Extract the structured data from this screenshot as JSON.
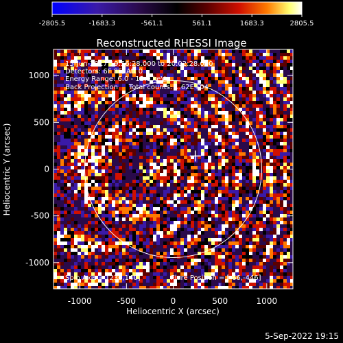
{
  "colorbar": {
    "tick_labels": [
      "-2805.5",
      "-1683.3",
      "-561.1",
      "561.1",
      "1683.3",
      "2805.5"
    ],
    "min": -2805.5,
    "max": 2805.5,
    "colormap": [
      "#0000ff",
      "#3a1aa8",
      "#2a0a4a",
      "#000000",
      "#5a0000",
      "#d01000",
      "#ff7a00",
      "#ffff70",
      "#ffffff"
    ]
  },
  "title": "Reconstructed RHESSI Image",
  "info": {
    "line1": "15-Jun-2017 19:56:28.000 to 20:02:28.000",
    "line2": "Detectors: 6F 8F, Att 0",
    "line3": "Energy Range: 6.0 - 12.0 keV",
    "line4": "Back Projection     Total counts: 1.62E+04",
    "spin_axis": "Spin Axis = [236,140]",
    "flare_position": "Flare Position = [-66,-446]"
  },
  "axes": {
    "xlabel": "Heliocentric X (arcsec)",
    "ylabel": "Heliocentric Y (arcsec)",
    "xticks": [
      "-1000",
      "-500",
      "0",
      "500",
      "1000"
    ],
    "yticks": [
      "1000",
      "500",
      "0",
      "-500",
      "-1000"
    ],
    "xrange": [
      -1280,
      1280
    ],
    "yrange": [
      -1280,
      1280
    ]
  },
  "overlays": {
    "limb_radius_arcsec": 946,
    "spin_axis_marker": [
      236,
      140
    ]
  },
  "footer": {
    "date": "5-Sep-2022 19:15"
  }
}
